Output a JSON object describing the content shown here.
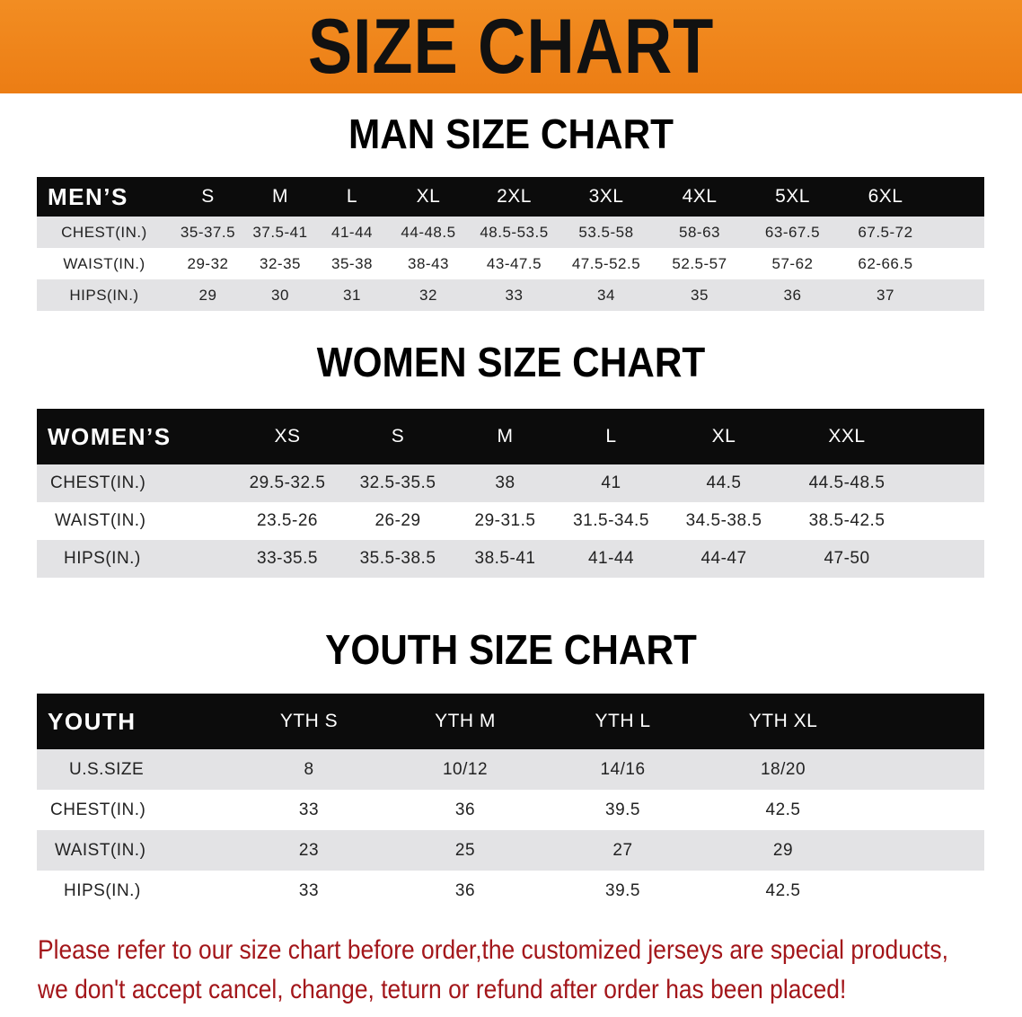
{
  "banner_title": "SIZE CHART",
  "sections": {
    "men": {
      "title": "MAN SIZE CHART",
      "header": "MEN’S",
      "sizes": [
        "S",
        "M",
        "L",
        "XL",
        "2XL",
        "3XL",
        "4XL",
        "5XL",
        "6XL"
      ],
      "rows": [
        {
          "label": "CHEST(IN.)",
          "values": [
            "35-37.5",
            "37.5-41",
            "41-44",
            "44-48.5",
            "48.5-53.5",
            "53.5-58",
            "58-63",
            "63-67.5",
            "67.5-72"
          ]
        },
        {
          "label": "WAIST(IN.)",
          "values": [
            "29-32",
            "32-35",
            "35-38",
            "38-43",
            "43-47.5",
            "47.5-52.5",
            "52.5-57",
            "57-62",
            "62-66.5"
          ]
        },
        {
          "label": "HIPS(IN.)",
          "values": [
            "29",
            "30",
            "31",
            "32",
            "33",
            "34",
            "35",
            "36",
            "37"
          ]
        }
      ]
    },
    "women": {
      "title": "WOMEN SIZE CHART",
      "header": "WOMEN’S",
      "sizes": [
        "XS",
        "S",
        "M",
        "L",
        "XL",
        "XXL"
      ],
      "rows": [
        {
          "label": "CHEST(IN.)",
          "values": [
            "29.5-32.5",
            "32.5-35.5",
            "38",
            "41",
            "44.5",
            "44.5-48.5"
          ]
        },
        {
          "label": "WAIST(IN.)",
          "values": [
            "23.5-26",
            "26-29",
            "29-31.5",
            "31.5-34.5",
            "34.5-38.5",
            "38.5-42.5"
          ]
        },
        {
          "label": "HIPS(IN.)",
          "values": [
            "33-35.5",
            "35.5-38.5",
            "38.5-41",
            "41-44",
            "44-47",
            "47-50"
          ]
        }
      ]
    },
    "youth": {
      "title": "YOUTH SIZE CHART",
      "header": "YOUTH",
      "sizes": [
        "YTH S",
        "YTH M",
        "YTH L",
        "YTH XL"
      ],
      "rows": [
        {
          "label": "U.S.SIZE",
          "values": [
            "8",
            "10/12",
            "14/16",
            "18/20"
          ]
        },
        {
          "label": "CHEST(IN.)",
          "values": [
            "33",
            "36",
            "39.5",
            "42.5"
          ]
        },
        {
          "label": "WAIST(IN.)",
          "values": [
            "23",
            "25",
            "27",
            "29"
          ]
        },
        {
          "label": "HIPS(IN.)",
          "values": [
            "33",
            "36",
            "39.5",
            "42.5"
          ]
        }
      ]
    }
  },
  "notice": [
    "Please refer to our size chart before order,the customized jerseys are special products,",
    "we don't accept cancel, change, teturn or refund after order has been placed!"
  ],
  "colors": {
    "banner": "#ee8419",
    "header_row": "#0c0c0c",
    "stripe": "#e3e3e5",
    "notice": "#a3161a"
  }
}
